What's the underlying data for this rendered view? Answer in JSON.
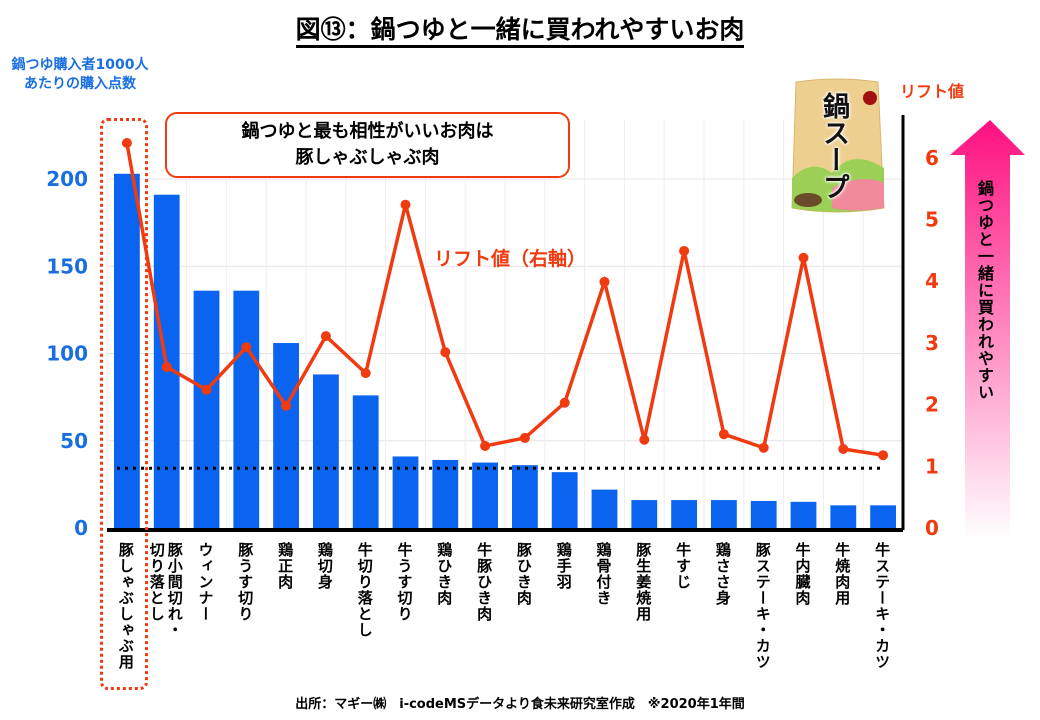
{
  "title": "図⑬：鍋つゆと一緒に買われやすいお肉",
  "callout": {
    "line1": "鍋つゆと最も相性がいいお肉は",
    "line2": "豚しゃぶしゃぶ肉"
  },
  "lift_series_label": "リフト値（右軸）",
  "arrow_text": "鍋つゆと一緒に買われやすい",
  "source": "出所：マギー㈱　i-codeMSデータより食未来研究室作成　※2020年1年間",
  "package_text": "鍋スープ",
  "colors": {
    "bar": "#0a64f0",
    "line": "#f03a10",
    "left_axis": "#1a6fe0",
    "right_axis": "#f03a10",
    "arrow_top": "#ff1080"
  },
  "chart_data": {
    "type": "bar+line",
    "title": "図⑬：鍋つゆと一緒に買われやすいお肉",
    "ylabel": "鍋つゆ購入者1000人あたりの購入点数",
    "y2label": "リフト値",
    "ylim": [
      0,
      220
    ],
    "y2lim": [
      0,
      6.5
    ],
    "yticks": [
      0,
      50,
      100,
      150,
      200
    ],
    "y2ticks": [
      0,
      1,
      2,
      3,
      4,
      5,
      6
    ],
    "reference_line_lift": 1,
    "categories": [
      "豚しゃぶしゃぶ用",
      "豚小間切れ・切り落とし",
      "ウィンナー",
      "豚うす切り",
      "鶏正肉",
      "鶏切身",
      "牛切り落とし",
      "牛うす切り",
      "鶏ひき肉",
      "牛豚ひき肉",
      "豚ひき肉",
      "鶏手羽",
      "鶏骨付き",
      "豚生姜焼用",
      "牛すじ",
      "鶏ささ身",
      "豚ステーキ・カツ",
      "牛内臓肉",
      "牛焼肉用",
      "牛ステーキ・カツ"
    ],
    "series": [
      {
        "name": "鍋つゆ購入者1000人あたりの購入点数",
        "axis": "left",
        "type": "bar",
        "values": [
          203,
          191,
          136,
          136,
          106,
          88,
          76,
          41,
          39,
          37.5,
          36,
          32,
          22,
          16,
          16,
          16,
          15.5,
          15,
          13,
          13
        ]
      },
      {
        "name": "リフト値（右軸）",
        "axis": "right",
        "type": "line",
        "values": [
          6.24,
          2.61,
          2.24,
          2.93,
          1.98,
          3.11,
          2.51,
          5.24,
          2.85,
          1.33,
          1.46,
          2.03,
          3.99,
          1.43,
          4.49,
          1.52,
          1.3,
          4.38,
          1.28,
          1.18
        ]
      }
    ],
    "highlight_category": "豚しゃぶしゃぶ用",
    "grid": true
  }
}
